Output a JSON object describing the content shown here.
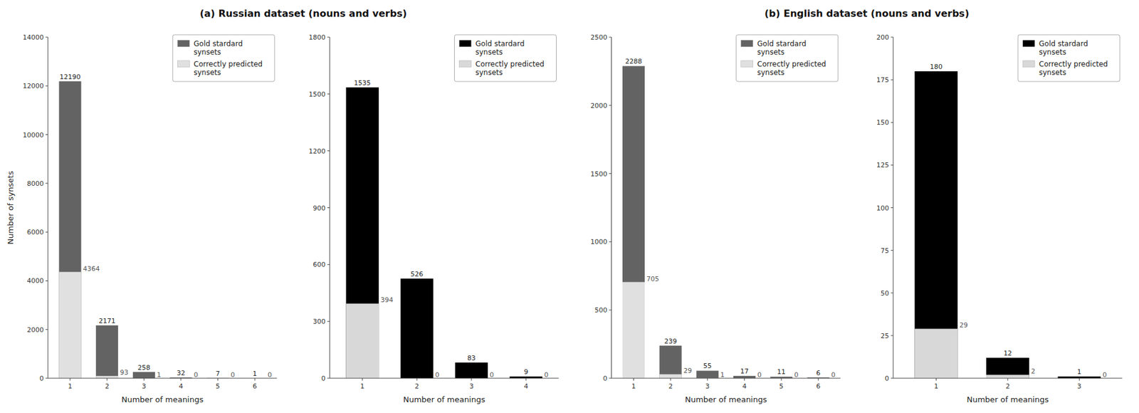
{
  "chart_data": [
    {
      "type": "bar",
      "title": "(a) Russian dataset (nouns and verbs)",
      "x_label": "Number of meanings",
      "y_label": "Number of synsets",
      "x": [
        1,
        2,
        3,
        4,
        5,
        6
      ],
      "xlim": [
        0.4,
        6.6
      ],
      "xticks": [
        1,
        2,
        3,
        4,
        5,
        6
      ],
      "ylim": [
        0,
        14000
      ],
      "yticks": [
        0,
        2000,
        4000,
        6000,
        8000,
        10000,
        12000,
        14000
      ],
      "series": [
        {
          "name": "Gold stardard\nsynsets",
          "color": "#636363",
          "values": [
            12190,
            2171,
            258,
            32,
            7,
            1
          ]
        },
        {
          "name": "Correctly predicted\nsynsets",
          "color": "#e0e0e0",
          "values": [
            4364,
            93,
            1,
            0,
            0,
            0
          ]
        }
      ],
      "legend": "upper right",
      "data_labels": true,
      "grid": false
    },
    {
      "type": "bar",
      "x_label": "Number of meanings",
      "x": [
        1,
        2,
        3,
        4
      ],
      "xlim": [
        0.4,
        4.6
      ],
      "xticks": [
        1,
        2,
        3,
        4
      ],
      "ylim": [
        0,
        1800
      ],
      "yticks": [
        0,
        300,
        600,
        900,
        1200,
        1500,
        1800
      ],
      "series": [
        {
          "name": "Gold stardard\nsynsets",
          "color": "#000000",
          "values": [
            1535,
            526,
            83,
            9
          ]
        },
        {
          "name": "Correctly predicted\nsynsets",
          "color": "#d8d8d8",
          "values": [
            394,
            0,
            0,
            0
          ]
        }
      ],
      "legend": "upper right",
      "data_labels": true,
      "grid": false
    },
    {
      "type": "bar",
      "title": "(b) English dataset (nouns and verbs)",
      "x_label": "Number of meanings",
      "x": [
        1,
        2,
        3,
        4,
        5,
        6
      ],
      "xlim": [
        0.4,
        6.6
      ],
      "xticks": [
        1,
        2,
        3,
        4,
        5,
        6
      ],
      "ylim": [
        0,
        2500
      ],
      "yticks": [
        0,
        500,
        1000,
        1500,
        2000,
        2500
      ],
      "series": [
        {
          "name": "Gold stardard\nsynsets",
          "color": "#636363",
          "values": [
            2288,
            239,
            55,
            17,
            11,
            6
          ]
        },
        {
          "name": "Correctly predicted\nsynsets",
          "color": "#e0e0e0",
          "values": [
            705,
            29,
            1,
            0,
            0,
            0
          ]
        }
      ],
      "legend": "upper right",
      "data_labels": true,
      "grid": false
    },
    {
      "type": "bar",
      "x_label": "Number of meanings",
      "x": [
        1,
        2,
        3
      ],
      "xlim": [
        0.4,
        3.6
      ],
      "xticks": [
        1,
        2,
        3
      ],
      "ylim": [
        0,
        200
      ],
      "yticks": [
        0,
        25,
        50,
        75,
        100,
        125,
        150,
        175,
        200
      ],
      "series": [
        {
          "name": "Gold stardard\nsynsets",
          "color": "#000000",
          "values": [
            180,
            12,
            1
          ]
        },
        {
          "name": "Correctly predicted\nsynsets",
          "color": "#d8d8d8",
          "values": [
            29,
            2,
            0
          ]
        }
      ],
      "legend": "upper right",
      "data_labels": true,
      "grid": false
    }
  ]
}
